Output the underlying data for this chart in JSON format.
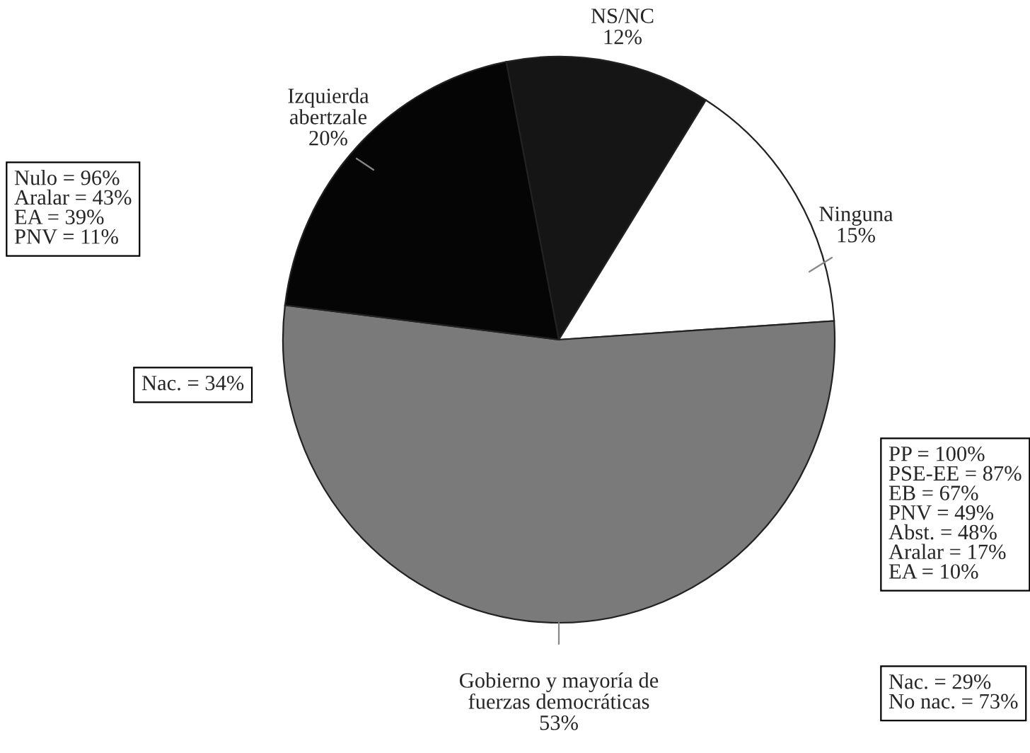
{
  "chart_data": {
    "type": "pie",
    "categories": [
      "NS/NC",
      "Ninguna",
      "Gobierno y mayoría de fuerzas democráticas",
      "Izquierda abertzale"
    ],
    "values": [
      12,
      15,
      53,
      20
    ],
    "colors": [
      "#151515",
      "#ffffff",
      "#7a7a7a",
      "#050505"
    ],
    "value_labels": [
      "12%",
      "15%",
      "53%",
      "20%"
    ],
    "annotations": [
      "Nulo = 96%\nAralar = 43%\nEA = 39%\nPNV = 11%",
      "Nac. = 34%",
      "PP = 100%\nPSE-EE = 87%\nEB = 67%\nPNV = 49%\nAbst. = 48%\nAralar = 17%\nEA = 10%",
      "Nac. = 29%\nNo nac. = 73%"
    ]
  }
}
